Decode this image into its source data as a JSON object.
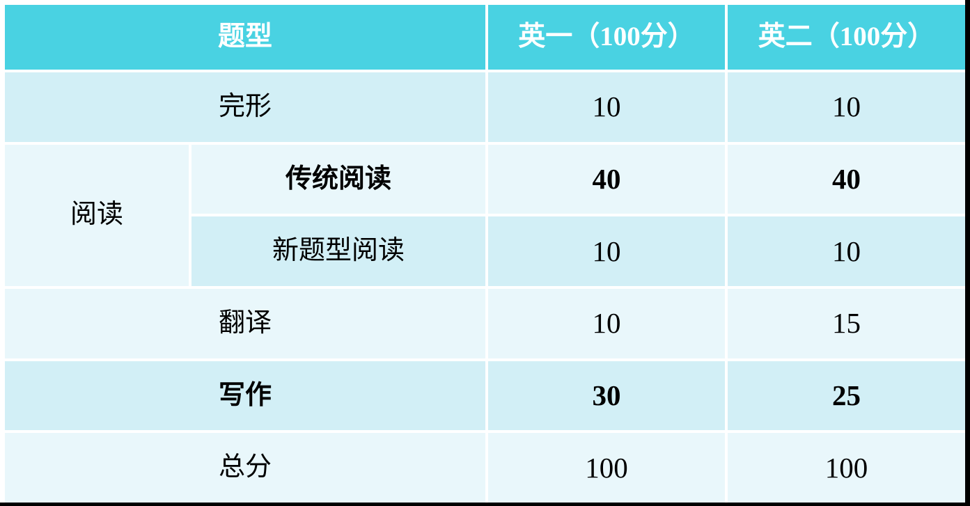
{
  "table": {
    "header": {
      "type_label": "题型",
      "eng1_label": "英一（100分）",
      "eng2_label": "英二（100分）"
    },
    "rows": {
      "cloze": {
        "label": "完形",
        "eng1": "10",
        "eng2": "10"
      },
      "reading_group": {
        "label": "阅读"
      },
      "traditional_reading": {
        "label": "传统阅读",
        "eng1": "40",
        "eng2": "40"
      },
      "new_type_reading": {
        "label": "新题型阅读",
        "eng1": "10",
        "eng2": "10"
      },
      "translation": {
        "label": "翻译",
        "eng1": "10",
        "eng2": "15"
      },
      "writing": {
        "label": "写作",
        "eng1": "30",
        "eng2": "25"
      },
      "total": {
        "label": "总分",
        "eng1": "100",
        "eng2": "100"
      }
    },
    "colors": {
      "header_bg": "#49D2E2",
      "row_band_dark": "#D2EFF6",
      "row_band_light": "#E9F7FB",
      "header_text": "#FFFFFF",
      "body_text": "#000000",
      "cell_gap": "#FFFFFF",
      "frame_edge": "#000000"
    }
  },
  "chart_data": {
    "type": "table",
    "title": "",
    "columns": [
      "题型",
      "英一（100分）",
      "英二（100分）"
    ],
    "rows": [
      {
        "group": "",
        "category": "完形",
        "eng1": 10,
        "eng2": 10,
        "bold": false
      },
      {
        "group": "阅读",
        "category": "传统阅读",
        "eng1": 40,
        "eng2": 40,
        "bold": true
      },
      {
        "group": "阅读",
        "category": "新题型阅读",
        "eng1": 10,
        "eng2": 10,
        "bold": false
      },
      {
        "group": "",
        "category": "翻译",
        "eng1": 10,
        "eng2": 15,
        "bold": false
      },
      {
        "group": "",
        "category": "写作",
        "eng1": 30,
        "eng2": 25,
        "bold": true
      },
      {
        "group": "",
        "category": "总分",
        "eng1": 100,
        "eng2": 100,
        "bold": false
      }
    ]
  }
}
